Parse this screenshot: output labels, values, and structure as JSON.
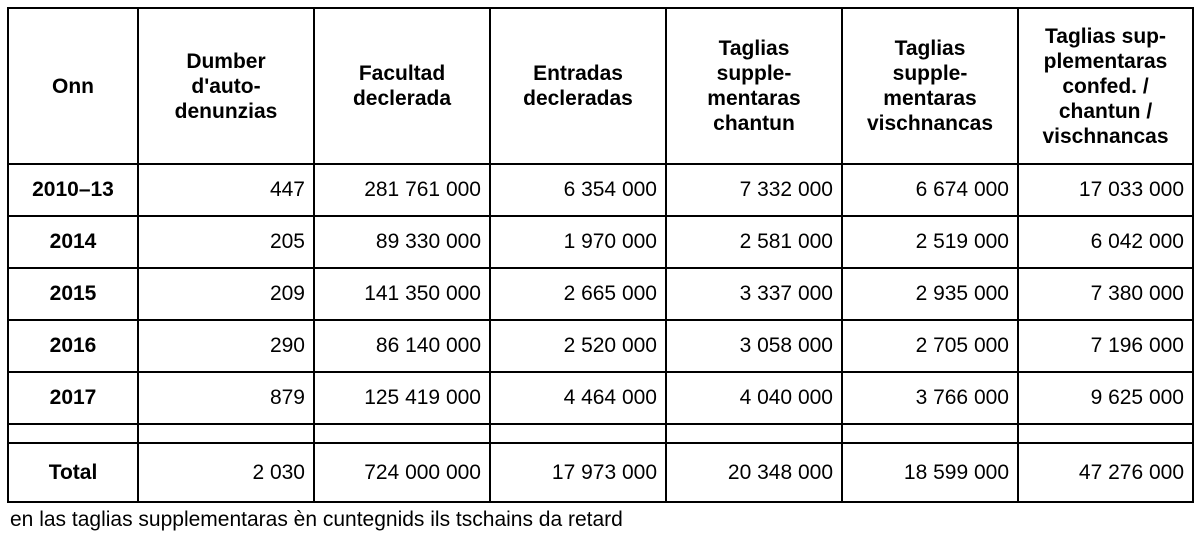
{
  "table": {
    "headers": [
      [
        "Onn"
      ],
      [
        "Dumber",
        "d'auto-",
        "denunzias"
      ],
      [
        "Facultad",
        "declerada"
      ],
      [
        "Entradas",
        "decleradas"
      ],
      [
        "Taglias",
        "supple-",
        "mentaras",
        "chantun"
      ],
      [
        "Taglias",
        "supple-",
        "mentaras",
        "vischnancas"
      ],
      [
        "Taglias sup-",
        "plementaras",
        "confed. /",
        "chantun /",
        "vischnancas"
      ]
    ],
    "rows": [
      [
        "2010–13",
        "447",
        "281 761 000",
        "6 354 000",
        "7 332 000",
        "6 674 000",
        "17 033 000"
      ],
      [
        "2014",
        "205",
        "89 330 000",
        "1 970 000",
        "2 581 000",
        "2 519 000",
        "6 042 000"
      ],
      [
        "2015",
        "209",
        "141 350 000",
        "2 665 000",
        "3 337 000",
        "2 935 000",
        "7 380 000"
      ],
      [
        "2016",
        "290",
        "86 140 000",
        "2 520 000",
        "3 058 000",
        "2 705 000",
        "7 196 000"
      ],
      [
        "2017",
        "879",
        "125 419 000",
        "4 464 000",
        "4 040 000",
        "3 766 000",
        "9 625 000"
      ]
    ],
    "total": [
      "Total",
      "2 030",
      "724 000 000",
      "17 973 000",
      "20 348 000",
      "18 599 000",
      "47 276 000"
    ]
  },
  "footnote": "en las taglias supplementaras èn cuntegnids ils tschains da retard"
}
